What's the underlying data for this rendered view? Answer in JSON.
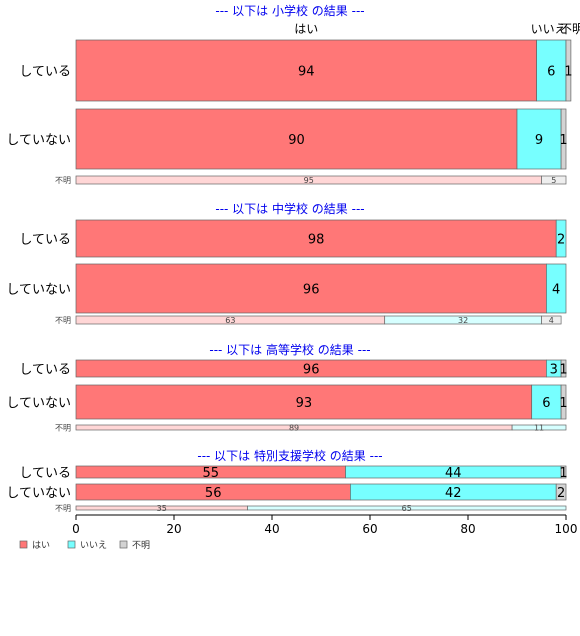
{
  "chart_data": {
    "type": "bar",
    "orientation": "horizontal-stacked-100",
    "xlim": [
      0,
      100
    ],
    "x_ticks": [
      "0",
      "20",
      "40",
      "60",
      "80",
      "100"
    ],
    "column_headers": [
      "はい",
      "いいえ",
      "不明"
    ],
    "legend": {
      "placement": "bottom-left",
      "entries": [
        "はい",
        "いいえ",
        "不明"
      ]
    },
    "colors": {
      "yes": "#ff7777",
      "no": "#77ffff",
      "unknown": "#d3d3d3",
      "yes_light": "#ffd6d6",
      "no_light": "#d6ffff",
      "unknown_light": "#eeeeee",
      "title": "#0000ee"
    },
    "panels": [
      {
        "title": "--- 以下は 小学校 の結果 ---",
        "rows": [
          {
            "label": "している",
            "values": [
              94,
              6,
              1
            ]
          },
          {
            "label": "していない",
            "values": [
              90,
              9,
              1
            ]
          },
          {
            "label": "不明",
            "values": [
              95,
              0,
              5
            ]
          }
        ]
      },
      {
        "title": "--- 以下は 中学校 の結果 ---",
        "rows": [
          {
            "label": "している",
            "values": [
              98,
              2,
              0
            ]
          },
          {
            "label": "していない",
            "values": [
              96,
              4,
              0
            ]
          },
          {
            "label": "不明",
            "values": [
              63,
              32,
              4
            ]
          }
        ]
      },
      {
        "title": "--- 以下は 高等学校 の結果 ---",
        "rows": [
          {
            "label": "している",
            "values": [
              96,
              3,
              1
            ]
          },
          {
            "label": "していない",
            "values": [
              93,
              6,
              1
            ]
          },
          {
            "label": "不明",
            "values": [
              89,
              11,
              0
            ]
          }
        ]
      },
      {
        "title": "--- 以下は 特別支援学校 の結果 ---",
        "rows": [
          {
            "label": "している",
            "values": [
              55,
              44,
              1
            ]
          },
          {
            "label": "していない",
            "values": [
              56,
              42,
              2
            ]
          },
          {
            "label": "不明",
            "values": [
              35,
              65,
              0
            ]
          }
        ]
      }
    ]
  }
}
